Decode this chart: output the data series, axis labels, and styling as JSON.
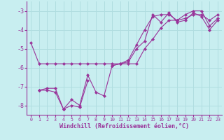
{
  "xlabel": "Windchill (Refroidissement éolien,°C)",
  "background_color": "#c8eef0",
  "grid_color": "#b0dde0",
  "line_color": "#993399",
  "spine_color": "#993399",
  "x_data": [
    0,
    1,
    2,
    3,
    4,
    5,
    6,
    7,
    8,
    9,
    10,
    11,
    12,
    13,
    14,
    15,
    16,
    17,
    18,
    19,
    20,
    21,
    22,
    23
  ],
  "series": [
    [
      -4.7,
      -5.8,
      -5.8,
      -5.8,
      -5.8,
      -5.8,
      -5.8,
      -5.8,
      -5.8,
      -5.8,
      -5.8,
      -5.8,
      -5.8,
      -5.8,
      -5.0,
      -4.5,
      -3.9,
      -3.5,
      -3.5,
      -3.4,
      -3.2,
      -3.2,
      -3.5,
      -3.2
    ],
    [
      null,
      -7.2,
      -7.1,
      -7.1,
      -8.2,
      -7.7,
      -8.0,
      -6.4,
      -7.3,
      -7.5,
      -5.9,
      -5.8,
      -5.7,
      -5.0,
      -4.6,
      -3.2,
      -3.6,
      -3.1,
      -3.6,
      -3.5,
      -3.1,
      -3.3,
      -4.0,
      -3.5
    ],
    [
      null,
      -7.2,
      -7.2,
      -7.3,
      -8.2,
      -8.0,
      -8.1,
      -6.7,
      null,
      null,
      null,
      null,
      null,
      null,
      null,
      null,
      null,
      null,
      null,
      null,
      null,
      null,
      null,
      null
    ],
    [
      null,
      null,
      null,
      null,
      null,
      null,
      null,
      null,
      null,
      null,
      -5.9,
      -5.8,
      -5.6,
      -4.8,
      -4.0,
      -3.3,
      -3.2,
      -3.2,
      -3.5,
      -3.2,
      -3.0,
      -3.0,
      -3.8,
      -3.4
    ]
  ],
  "ylim": [
    -8.5,
    -2.5
  ],
  "xlim": [
    -0.5,
    23.5
  ],
  "yticks": [
    -8,
    -7,
    -6,
    -5,
    -4,
    -3
  ],
  "xticks": [
    0,
    1,
    2,
    3,
    4,
    5,
    6,
    7,
    8,
    9,
    10,
    11,
    12,
    13,
    14,
    15,
    16,
    17,
    18,
    19,
    20,
    21,
    22,
    23
  ]
}
